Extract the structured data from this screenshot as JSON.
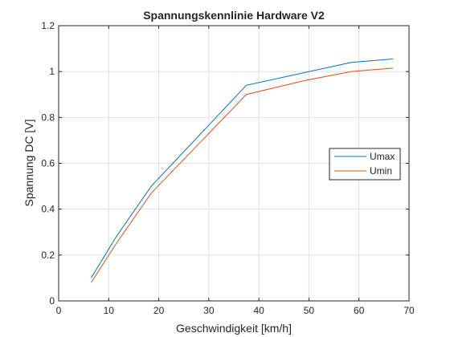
{
  "chart_data": {
    "type": "line",
    "title": "Spannungskennlinie Hardware V2",
    "xlabel": "Geschwindigkeit [km/h]",
    "ylabel": "Spannung DC [V]",
    "xlim": [
      0,
      70
    ],
    "ylim": [
      0,
      1.2
    ],
    "xticks": [
      0,
      10,
      20,
      30,
      40,
      50,
      60,
      70
    ],
    "yticks": [
      0,
      0.2,
      0.4,
      0.6,
      0.8,
      1,
      1.2
    ],
    "xtick_labels": [
      "0",
      "10",
      "20",
      "30",
      "40",
      "50",
      "60",
      "70"
    ],
    "ytick_labels": [
      "0",
      "0.2",
      "0.4",
      "0.6",
      "0.8",
      "1",
      "1.2"
    ],
    "grid": true,
    "legend_position": "right",
    "series": [
      {
        "name": "Umax",
        "color": "#0072BD",
        "x": [
          6.5,
          11.5,
          18.5,
          37.5,
          49,
          58.5,
          66.8
        ],
        "y": [
          0.1,
          0.28,
          0.5,
          0.94,
          0.995,
          1.04,
          1.055
        ]
      },
      {
        "name": "Umin",
        "color": "#D95319",
        "x": [
          6.5,
          11.5,
          18.5,
          37.5,
          49,
          58.5,
          66.8
        ],
        "y": [
          0.08,
          0.25,
          0.47,
          0.9,
          0.96,
          1.0,
          1.015
        ]
      }
    ]
  }
}
